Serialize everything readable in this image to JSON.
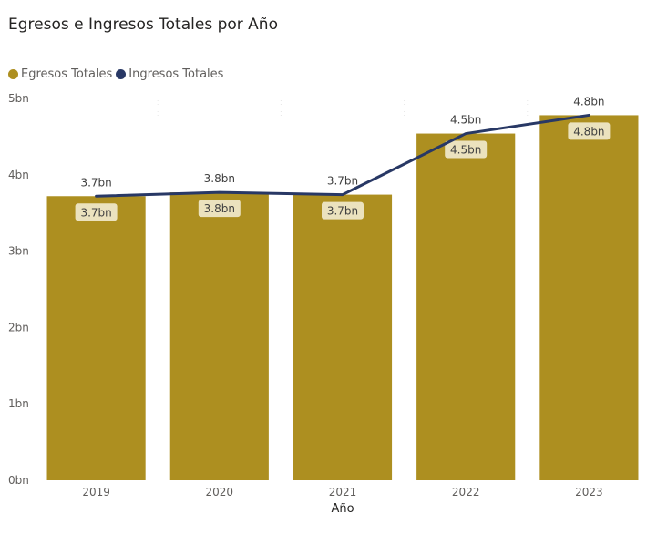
{
  "title": "Egresos e Ingresos Totales por Año",
  "legend": [
    {
      "name": "Egresos Totales",
      "color": "#ad8f20"
    },
    {
      "name": "Ingresos Totales",
      "color": "#283865"
    }
  ],
  "chart_data": {
    "type": "bar",
    "title": "Egresos e Ingresos Totales por Año",
    "xlabel": "Año",
    "ylabel": "",
    "categories": [
      "2019",
      "2020",
      "2021",
      "2022",
      "2023"
    ],
    "ylim": [
      0,
      5
    ],
    "yticks": [
      0,
      1,
      2,
      3,
      4,
      5
    ],
    "ytick_labels": [
      "0bn",
      "1bn",
      "2bn",
      "3bn",
      "4bn",
      "5bn"
    ],
    "legend_position": "top-left",
    "grid": false,
    "series": [
      {
        "name": "Egresos Totales",
        "type": "bar",
        "color": "#ad8f20",
        "values": [
          3.72,
          3.77,
          3.74,
          4.54,
          4.78
        ],
        "labels": [
          "3.7bn",
          "3.8bn",
          "3.7bn",
          "4.5bn",
          "4.8bn"
        ]
      },
      {
        "name": "Ingresos Totales",
        "type": "line",
        "color": "#283865",
        "values": [
          3.72,
          3.77,
          3.74,
          4.54,
          4.78
        ],
        "labels": [
          "3.7bn",
          "3.8bn",
          "3.7bn",
          "4.5bn",
          "4.8bn"
        ]
      }
    ]
  }
}
